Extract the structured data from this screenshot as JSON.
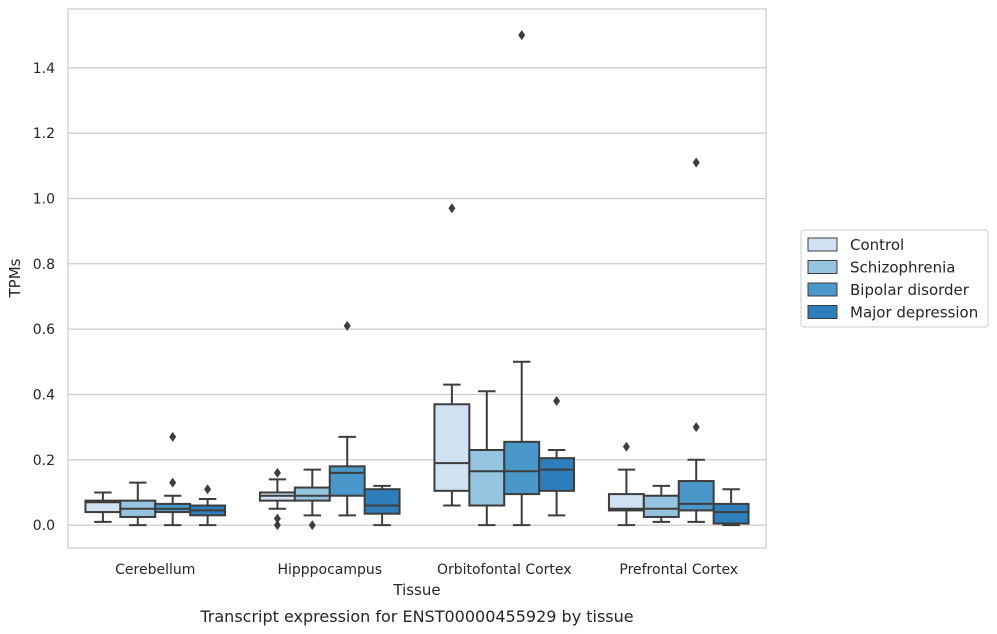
{
  "caption": "Transcript expression for ENST00000455929 by tissue",
  "chart_data": {
    "type": "box",
    "title": "",
    "xlabel": "Tissue",
    "ylabel": "TPMs",
    "ylim": [
      -0.07,
      1.58
    ],
    "yticks": [
      0.0,
      0.2,
      0.4,
      0.6,
      0.8,
      1.0,
      1.2,
      1.4
    ],
    "ytick_labels": [
      "0.0",
      "0.2",
      "0.4",
      "0.6",
      "0.8",
      "1.0",
      "1.2",
      "1.4"
    ],
    "grid": "horizontal",
    "legend_position": "right",
    "categories": [
      "Cerebellum",
      "Hipppocampus",
      "Orbitofontal Cortex",
      "Prefrontal Cortex"
    ],
    "series": [
      {
        "name": "Control",
        "color": "#d0e1f2",
        "boxes": [
          {
            "whislo": 0.01,
            "q1": 0.04,
            "med": 0.07,
            "q3": 0.075,
            "whishi": 0.1,
            "fliers": []
          },
          {
            "whislo": 0.05,
            "q1": 0.075,
            "med": 0.09,
            "q3": 0.1,
            "whishi": 0.14,
            "fliers": [
              0.16,
              0.02,
              0.0
            ]
          },
          {
            "whislo": 0.06,
            "q1": 0.105,
            "med": 0.19,
            "q3": 0.37,
            "whishi": 0.43,
            "fliers": [
              0.97
            ]
          },
          {
            "whislo": 0.0,
            "q1": 0.045,
            "med": 0.05,
            "q3": 0.095,
            "whishi": 0.17,
            "fliers": [
              0.24
            ]
          }
        ]
      },
      {
        "name": "Schizophrenia",
        "color": "#94c4df",
        "boxes": [
          {
            "whislo": 0.0,
            "q1": 0.025,
            "med": 0.05,
            "q3": 0.075,
            "whishi": 0.13,
            "fliers": []
          },
          {
            "whislo": 0.03,
            "q1": 0.075,
            "med": 0.09,
            "q3": 0.115,
            "whishi": 0.17,
            "fliers": [
              0.0
            ]
          },
          {
            "whislo": 0.0,
            "q1": 0.06,
            "med": 0.165,
            "q3": 0.23,
            "whishi": 0.41,
            "fliers": []
          },
          {
            "whislo": 0.01,
            "q1": 0.025,
            "med": 0.05,
            "q3": 0.09,
            "whishi": 0.12,
            "fliers": []
          }
        ]
      },
      {
        "name": "Bipolar disorder",
        "color": "#4a98c9",
        "boxes": [
          {
            "whislo": 0.0,
            "q1": 0.04,
            "med": 0.05,
            "q3": 0.065,
            "whishi": 0.09,
            "fliers": [
              0.27,
              0.13
            ]
          },
          {
            "whislo": 0.03,
            "q1": 0.09,
            "med": 0.16,
            "q3": 0.18,
            "whishi": 0.27,
            "fliers": [
              0.61
            ]
          },
          {
            "whislo": 0.0,
            "q1": 0.095,
            "med": 0.165,
            "q3": 0.255,
            "whishi": 0.5,
            "fliers": [
              1.5
            ]
          },
          {
            "whislo": 0.01,
            "q1": 0.045,
            "med": 0.065,
            "q3": 0.135,
            "whishi": 0.2,
            "fliers": [
              0.3,
              1.11
            ]
          }
        ]
      },
      {
        "name": "Major depression",
        "color": "#2e7ebc",
        "boxes": [
          {
            "whislo": 0.0,
            "q1": 0.03,
            "med": 0.045,
            "q3": 0.06,
            "whishi": 0.08,
            "fliers": [
              0.11
            ]
          },
          {
            "whislo": 0.0,
            "q1": 0.035,
            "med": 0.06,
            "q3": 0.11,
            "whishi": 0.12,
            "fliers": []
          },
          {
            "whislo": 0.03,
            "q1": 0.105,
            "med": 0.17,
            "q3": 0.205,
            "whishi": 0.23,
            "fliers": [
              0.38
            ]
          },
          {
            "whislo": 0.0,
            "q1": 0.005,
            "med": 0.04,
            "q3": 0.065,
            "whishi": 0.11,
            "fliers": []
          }
        ]
      }
    ]
  }
}
